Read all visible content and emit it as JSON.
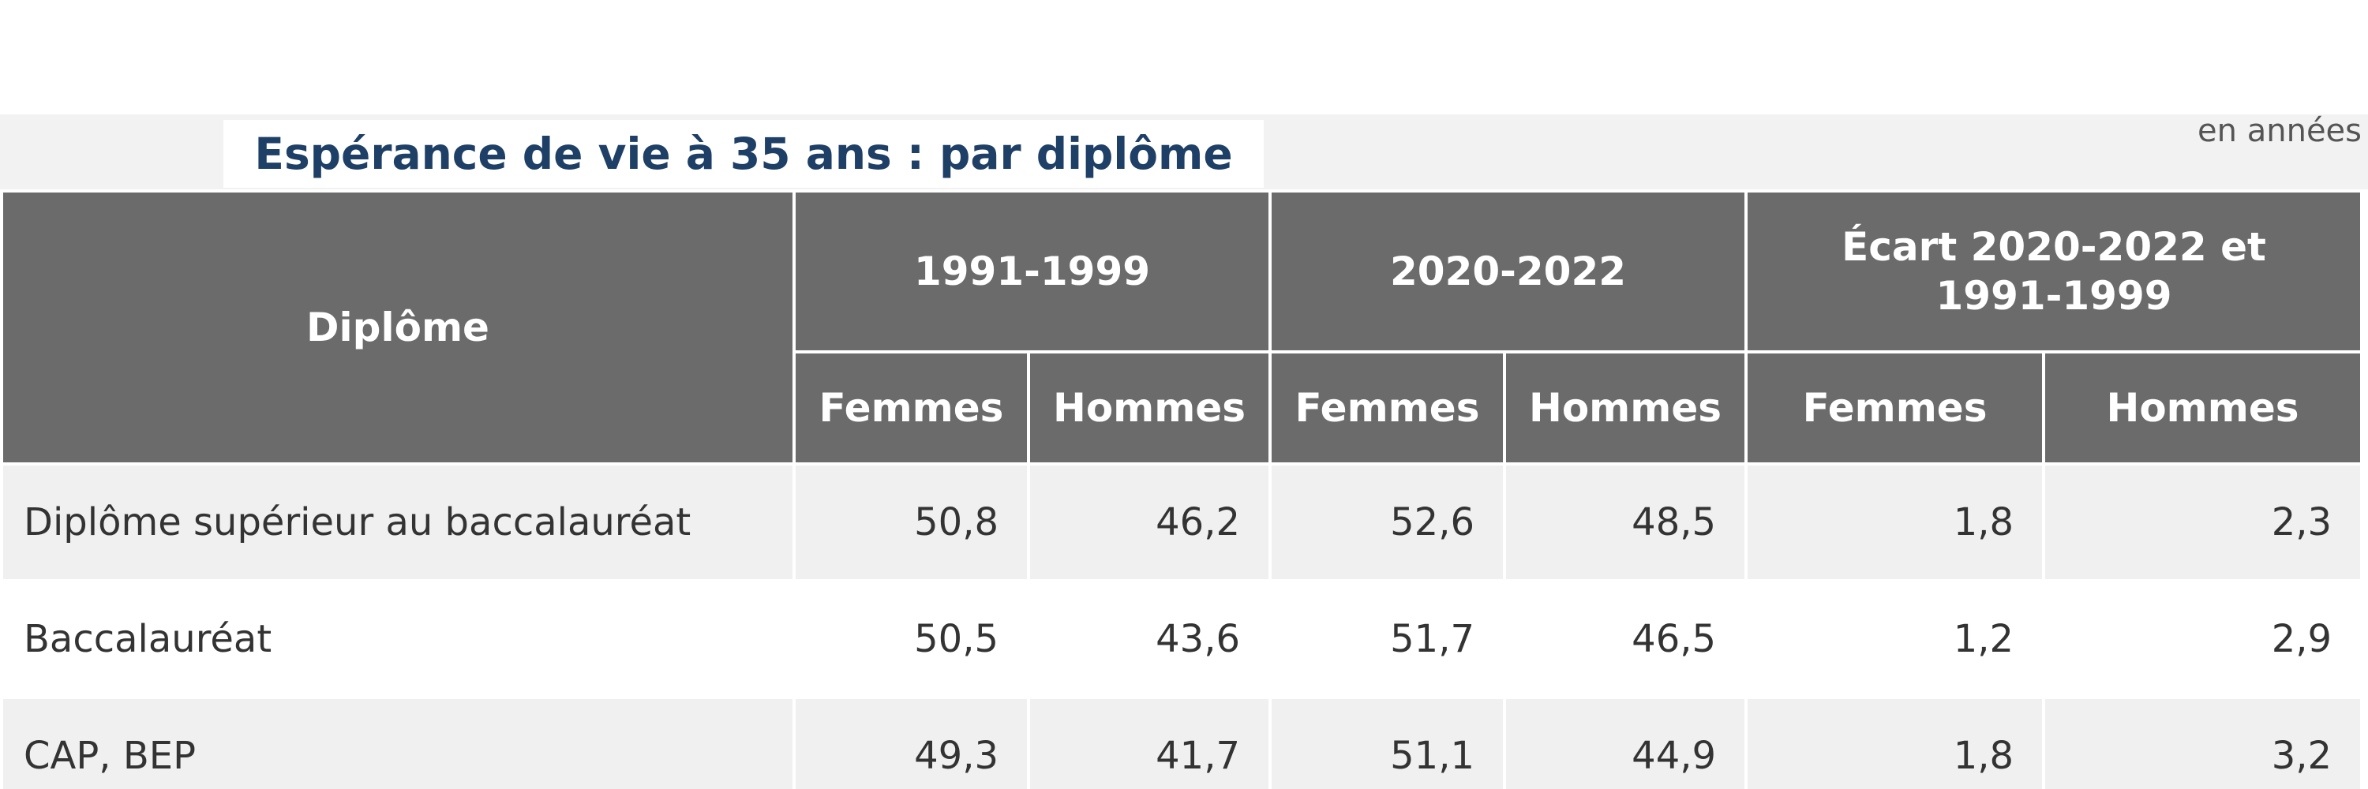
{
  "title": "Espérance de vie à 35 ans : par diplôme",
  "unit": "en années",
  "table": {
    "row_header": "Diplôme",
    "periods": [
      "1991-1999",
      "2020-2022",
      "Écart 2020-2022 et 1991-1999"
    ],
    "subheaders": [
      "Femmes",
      "Hommes",
      "Femmes",
      "Hommes",
      "Femmes",
      "Hommes"
    ],
    "rows": [
      {
        "label": "Diplôme supérieur au baccalauréat",
        "values": [
          "50,8",
          "46,2",
          "52,6",
          "48,5",
          "1,8",
          "2,3"
        ]
      },
      {
        "label": "Baccalauréat",
        "values": [
          "50,5",
          "43,6",
          "51,7",
          "46,5",
          "1,2",
          "2,9"
        ]
      },
      {
        "label": "CAP, BEP",
        "values": [
          "49,3",
          "41,7",
          "51,1",
          "44,9",
          "1,8",
          "3,2"
        ]
      }
    ]
  }
}
